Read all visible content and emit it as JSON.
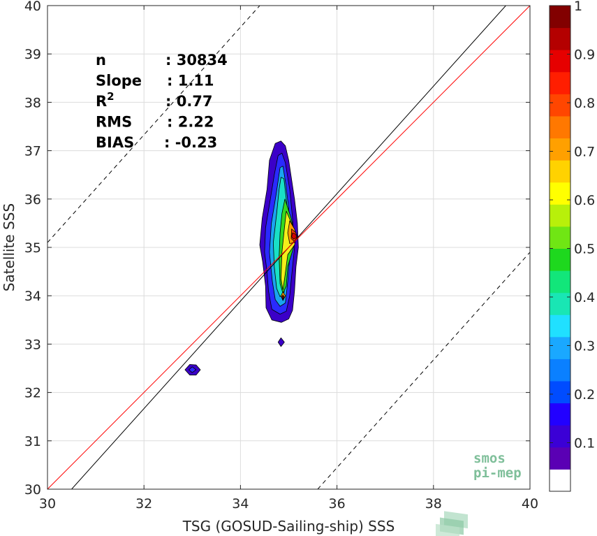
{
  "chart_data": {
    "type": "scatter",
    "subtype": "density-contour",
    "xlabel": "TSG (GOSUD-Sailing-ship) SSS",
    "ylabel": "Satellite SSS",
    "xlim": [
      30,
      40
    ],
    "ylim": [
      30,
      40
    ],
    "xticks": [
      "30",
      "32",
      "34",
      "36",
      "38",
      "40"
    ],
    "yticks": [
      "30",
      "31",
      "32",
      "33",
      "34",
      "35",
      "36",
      "37",
      "38",
      "39",
      "40"
    ],
    "grid": true,
    "stats": [
      {
        "label": "n",
        "value": ": 30834"
      },
      {
        "label": "Slope",
        "value": ": 1.11"
      },
      {
        "label": "R",
        "sup": "2",
        "value": ": 0.77"
      },
      {
        "label": "RMS",
        "value": ": 2.22"
      },
      {
        "label": "BIAS",
        "value": ": -0.23"
      }
    ],
    "reference_lines": [
      {
        "name": "1:1",
        "color": "#000000",
        "style": "solid",
        "points": [
          [
            30.5,
            30
          ],
          [
            39.5,
            40
          ]
        ]
      },
      {
        "name": "regression",
        "color": "#ff0000",
        "style": "solid",
        "points": [
          [
            30,
            30
          ],
          [
            40,
            40
          ]
        ]
      },
      {
        "name": "upper-bound",
        "color": "#000000",
        "style": "dashed",
        "points": [
          [
            30,
            35.1
          ],
          [
            34.4,
            40
          ]
        ]
      },
      {
        "name": "lower-bound",
        "color": "#000000",
        "style": "dashed",
        "points": [
          [
            35.6,
            30
          ],
          [
            40,
            34.9
          ]
        ]
      }
    ],
    "density_levels": [
      {
        "level": 0.05,
        "color": "#3b00c8",
        "contours": [
          [
            [
              34.72,
              37.15
            ],
            [
              34.84,
              37.2
            ],
            [
              34.93,
              37.1
            ],
            [
              35.0,
              36.8
            ],
            [
              35.12,
              36.0
            ],
            [
              35.18,
              35.5
            ],
            [
              35.2,
              35.0
            ],
            [
              35.15,
              34.6
            ],
            [
              35.12,
              34.1
            ],
            [
              35.08,
              33.7
            ],
            [
              35.0,
              33.52
            ],
            [
              34.85,
              33.45
            ],
            [
              34.65,
              33.5
            ],
            [
              34.53,
              33.75
            ],
            [
              34.52,
              34.2
            ],
            [
              34.46,
              34.7
            ],
            [
              34.4,
              35.05
            ],
            [
              34.45,
              35.6
            ],
            [
              34.55,
              36.2
            ],
            [
              34.6,
              36.8
            ]
          ],
          [
            [
              32.85,
              32.47
            ],
            [
              32.95,
              32.58
            ],
            [
              33.08,
              32.57
            ],
            [
              33.17,
              32.47
            ],
            [
              33.08,
              32.36
            ],
            [
              32.95,
              32.36
            ]
          ],
          [
            [
              34.78,
              33.04
            ],
            [
              34.84,
              33.13
            ],
            [
              34.91,
              33.04
            ],
            [
              34.84,
              32.95
            ]
          ]
        ]
      },
      {
        "level": 0.1,
        "color": "#2a2aff",
        "contours": [
          [
            [
              34.78,
              36.9
            ],
            [
              34.86,
              36.95
            ],
            [
              34.93,
              36.75
            ],
            [
              35.02,
              36.2
            ],
            [
              35.08,
              35.6
            ],
            [
              35.12,
              35.0
            ],
            [
              35.07,
              34.5
            ],
            [
              35.02,
              34.0
            ],
            [
              34.95,
              33.68
            ],
            [
              34.82,
              33.62
            ],
            [
              34.65,
              33.72
            ],
            [
              34.58,
              34.1
            ],
            [
              34.55,
              34.5
            ],
            [
              34.5,
              34.9
            ],
            [
              34.52,
              35.4
            ],
            [
              34.62,
              36.0
            ],
            [
              34.7,
              36.5
            ]
          ],
          [
            [
              32.93,
              32.47
            ],
            [
              33.0,
              32.53
            ],
            [
              33.08,
              32.47
            ],
            [
              33.0,
              32.41
            ]
          ]
        ]
      },
      {
        "level": 0.25,
        "color": "#1aa4f0",
        "contours": [
          [
            [
              34.82,
              36.65
            ],
            [
              34.88,
              36.68
            ],
            [
              34.94,
              36.3
            ],
            [
              35.0,
              35.8
            ],
            [
              35.03,
              35.3
            ],
            [
              35.02,
              34.8
            ],
            [
              34.98,
              34.3
            ],
            [
              34.93,
              33.85
            ],
            [
              34.82,
              33.78
            ],
            [
              34.72,
              33.92
            ],
            [
              34.66,
              34.3
            ],
            [
              34.6,
              34.9
            ],
            [
              34.64,
              35.5
            ],
            [
              34.74,
              36.1
            ]
          ]
        ]
      },
      {
        "level": 0.4,
        "color": "#19e0c6",
        "contours": [
          [
            [
              34.84,
              36.45
            ],
            [
              34.9,
              36.42
            ],
            [
              34.95,
              36.0
            ],
            [
              35.0,
              35.5
            ],
            [
              35.0,
              35.0
            ],
            [
              34.96,
              34.5
            ],
            [
              34.9,
              34.05
            ],
            [
              34.82,
              33.98
            ],
            [
              34.75,
              34.15
            ],
            [
              34.7,
              34.6
            ],
            [
              34.68,
              35.1
            ],
            [
              34.75,
              35.7
            ],
            [
              34.8,
              36.2
            ]
          ]
        ]
      },
      {
        "level": 0.55,
        "color": "#35d81f",
        "contours": [
          [
            [
              34.92,
              36.0
            ],
            [
              35.05,
              35.6
            ],
            [
              35.12,
              35.3
            ],
            [
              35.1,
              35.0
            ],
            [
              34.98,
              34.6
            ],
            [
              34.95,
              34.2
            ],
            [
              34.88,
              34.05
            ],
            [
              34.82,
              34.25
            ],
            [
              34.8,
              34.8
            ],
            [
              34.82,
              35.3
            ],
            [
              34.86,
              35.7
            ]
          ]
        ]
      },
      {
        "level": 0.65,
        "color": "#f4ee1a",
        "contours": [
          [
            [
              34.95,
              35.75
            ],
            [
              35.08,
              35.45
            ],
            [
              35.16,
              35.25
            ],
            [
              35.12,
              35.05
            ],
            [
              34.98,
              34.85
            ],
            [
              34.92,
              34.4
            ],
            [
              34.88,
              34.12
            ],
            [
              34.84,
              34.35
            ],
            [
              34.86,
              34.9
            ],
            [
              34.9,
              35.3
            ]
          ]
        ]
      },
      {
        "level": 0.75,
        "color": "#ff9f00",
        "contours": [
          [
            [
              35.02,
              35.55
            ],
            [
              35.12,
              35.38
            ],
            [
              35.17,
              35.22
            ],
            [
              35.12,
              35.1
            ],
            [
              35.02,
              35.08
            ],
            [
              34.98,
              35.3
            ]
          ],
          [
            [
              34.88,
              34.08
            ],
            [
              34.93,
              34.0
            ],
            [
              34.88,
              33.9
            ],
            [
              34.84,
              34.0
            ]
          ]
        ]
      },
      {
        "level": 0.85,
        "color": "#ff3c00",
        "contours": [
          [
            [
              35.06,
              35.38
            ],
            [
              35.15,
              35.3
            ],
            [
              35.18,
              35.2
            ],
            [
              35.12,
              35.12
            ],
            [
              35.05,
              35.18
            ]
          ],
          [
            [
              34.88,
              34.02
            ],
            [
              34.91,
              33.97
            ],
            [
              34.88,
              33.92
            ],
            [
              34.85,
              33.97
            ]
          ]
        ]
      },
      {
        "level": 0.95,
        "color": "#d40000",
        "contours": [
          [
            [
              35.08,
              35.3
            ],
            [
              35.15,
              35.27
            ],
            [
              35.16,
              35.2
            ],
            [
              35.1,
              35.17
            ],
            [
              35.06,
              35.22
            ]
          ],
          [
            [
              34.88,
              33.99
            ],
            [
              34.9,
              33.96
            ],
            [
              34.88,
              33.94
            ],
            [
              34.86,
              33.96
            ]
          ]
        ]
      }
    ],
    "colorbar": {
      "range": [
        0,
        1
      ],
      "ticks": [
        "0.1",
        "0.2",
        "0.3",
        "0.4",
        "0.5",
        "0.6",
        "0.7",
        "0.8",
        "0.9",
        "1"
      ],
      "colors": [
        "#ffffff",
        "#5a00b4",
        "#3b00d6",
        "#2200ff",
        "#004cff",
        "#0a80ff",
        "#1aa8ff",
        "#20e0ff",
        "#19e6b4",
        "#12e67a",
        "#1ed81e",
        "#70e614",
        "#b8f00a",
        "#ffff00",
        "#ffd200",
        "#ffa000",
        "#ff7800",
        "#ff4600",
        "#ff1e00",
        "#e60000",
        "#b40000",
        "#820000"
      ]
    }
  },
  "logo": {
    "line1": "smos",
    "line2": "pi-mep"
  }
}
